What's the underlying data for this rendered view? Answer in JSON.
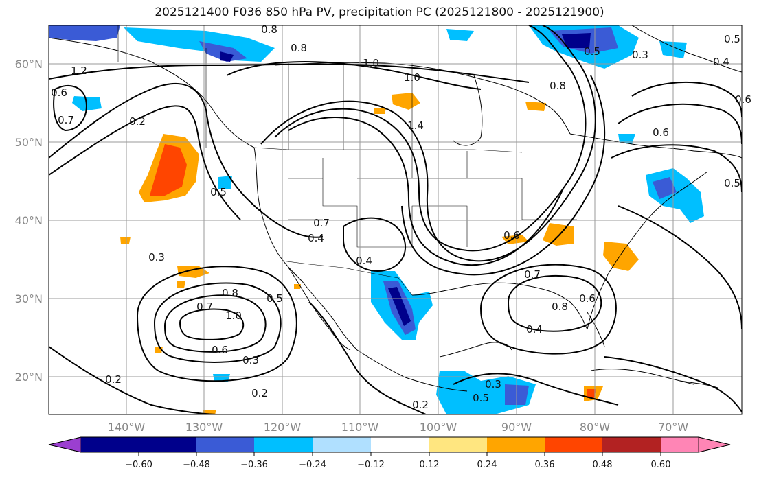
{
  "title": "2025121400 F036 850 hPa PV, precipitation PC (2025121800 - 2025121900)",
  "lat_labels": [
    "60°N",
    "50°N",
    "40°N",
    "30°N",
    "20°N"
  ],
  "lon_labels": [
    "140°W",
    "130°W",
    "120°W",
    "110°W",
    "100°W",
    "90°W",
    "80°W",
    "70°W"
  ],
  "colorbar": {
    "ticks": [
      "−0.60",
      "−0.48",
      "−0.36",
      "−0.24",
      "−0.12",
      "0.12",
      "0.24",
      "0.36",
      "0.48",
      "0.60"
    ],
    "colors": [
      "#9b3fd0",
      "#00008b",
      "#3a5bd6",
      "#00bfff",
      "#b0e0ff",
      "#ffffff",
      "#ffe680",
      "#ffa500",
      "#ff4500",
      "#b22222",
      "#ff85b5"
    ]
  },
  "contour_labels": [
    "0.8",
    "0.8",
    "1.0",
    "1.2",
    "0.6",
    "0.7",
    "0.2",
    "0.5",
    "1.4",
    "0.7",
    "0.4",
    "0.4",
    "0.3",
    "0.7",
    "0.8",
    "1.0",
    "0.5",
    "0.6",
    "0.3",
    "0.2",
    "0.2",
    "0.6",
    "0.7",
    "0.8",
    "0.6",
    "0.4",
    "0.3",
    "0.5",
    "0.2",
    "0.3",
    "0.5",
    "0.6",
    "0.5",
    "0.4",
    "1.0",
    "0.8",
    "0.6",
    "0.5"
  ]
}
